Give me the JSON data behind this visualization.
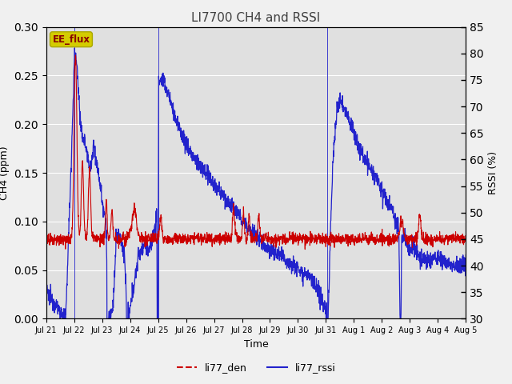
{
  "title": "LI7700 CH4 and RSSI",
  "xlabel": "Time",
  "ylabel_left": "CH4 (ppm)",
  "ylabel_right": "RSSI (%)",
  "annotation": "EE_flux",
  "ylim_left": [
    0.0,
    0.3
  ],
  "ylim_right": [
    30,
    85
  ],
  "yticks_left": [
    0.0,
    0.05,
    0.1,
    0.15,
    0.2,
    0.25,
    0.3
  ],
  "yticks_right": [
    30,
    35,
    40,
    45,
    50,
    55,
    60,
    65,
    70,
    75,
    80,
    85
  ],
  "xtick_labels": [
    "Jul 21",
    "Jul 22",
    "Jul 23",
    "Jul 24",
    "Jul 25",
    "Jul 26",
    "Jul 27",
    "Jul 28",
    "Jul 29",
    "Jul 30",
    "Jul 31",
    "Aug 1",
    "Aug 2",
    "Aug 3",
    "Aug 4",
    "Aug 5"
  ],
  "color_red": "#cc0000",
  "color_blue": "#2222cc",
  "legend_labels": [
    "li77_den",
    "li77_rssi"
  ],
  "bg_color_inner": "#e0e0e0",
  "bg_color_outer": "#f0f0f0",
  "annotation_bg": "#d4cc00",
  "annotation_fg": "#880000",
  "grid_color": "#ffffff",
  "title_color": "#404040",
  "vlines": [
    1.0,
    4.0,
    10.05
  ]
}
